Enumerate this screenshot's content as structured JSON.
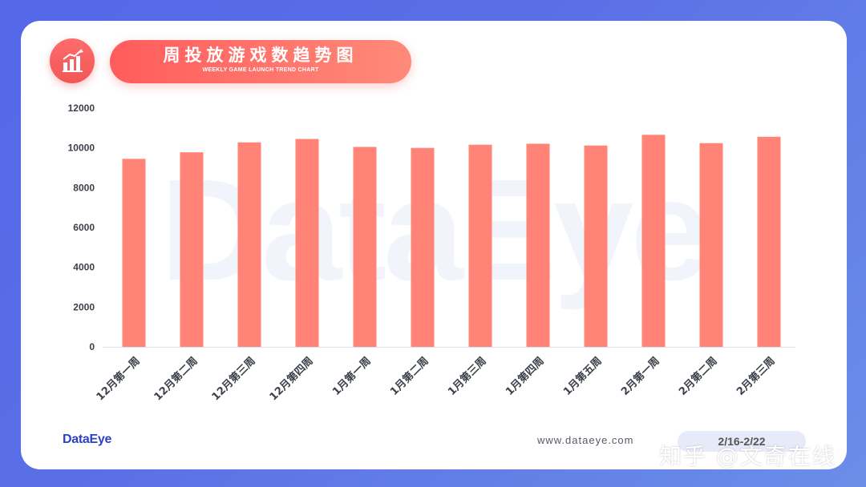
{
  "header": {
    "title": "周投放游戏数趋势图",
    "subtitle": "WEEKLY GAME LAUNCH TREND CHART",
    "icon": "bar-chart-trend-icon"
  },
  "watermark": "DataEye",
  "footer": {
    "brand": "DataEye",
    "website": "www.dataeye.com",
    "date_range": "2/16-2/22",
    "overlay_watermark": "知乎 @文奇在线"
  },
  "colors": {
    "bar": "#ff8477",
    "accent": "#ff5c5c",
    "background": "#5a6ee6",
    "brand": "#2d3fc7"
  },
  "chart_data": {
    "type": "bar",
    "categories": [
      "12月第一周",
      "12月第二周",
      "12月第三周",
      "12月第四周",
      "1月第一周",
      "1月第二周",
      "1月第三周",
      "1月第四周",
      "1月第五周",
      "2月第一周",
      "2月第二周",
      "2月第三周"
    ],
    "values": [
      9450,
      9780,
      10280,
      10450,
      10050,
      10000,
      10160,
      10210,
      10120,
      10660,
      10240,
      10560
    ],
    "yticks": [
      "0",
      "2000",
      "4000",
      "6000",
      "8000",
      "10000",
      "12000"
    ],
    "ylim": [
      0,
      12000
    ],
    "title": "周投放游戏数趋势图",
    "xlabel": "",
    "ylabel": "",
    "grid": false,
    "legend": "none"
  }
}
